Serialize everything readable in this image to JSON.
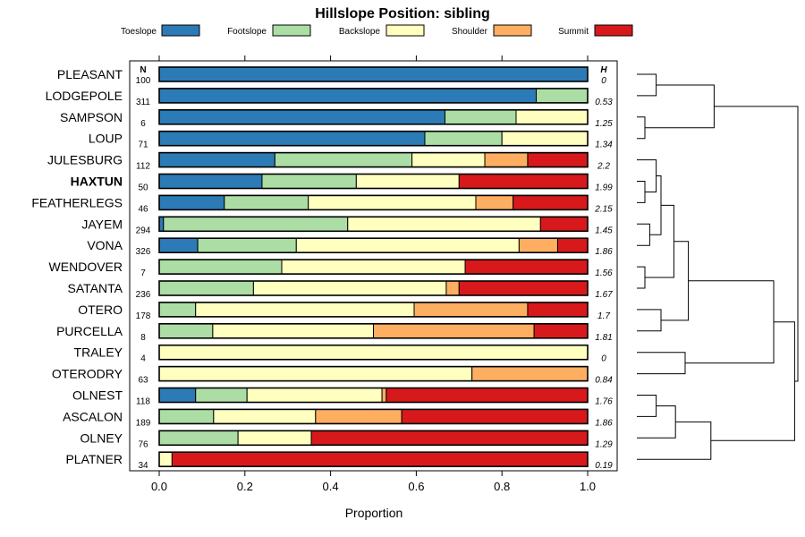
{
  "chart_data": {
    "type": "bar",
    "orientation": "horizontal",
    "stacked": true,
    "title": "Hillslope Position: sibling",
    "xlabel": "Proportion",
    "ylabel": "",
    "xlim": [
      0,
      1
    ],
    "x_ticks": [
      "0.0",
      "0.2",
      "0.4",
      "0.6",
      "0.8",
      "1.0"
    ],
    "x_tick_values": [
      0,
      0.2,
      0.4,
      0.6,
      0.8,
      1.0
    ],
    "n_header": "N",
    "h_header": "H",
    "highlighted": "HAXTUN",
    "legend_position": "top",
    "series": [
      {
        "name": "Toeslope",
        "color": "#2c7bb6"
      },
      {
        "name": "Footslope",
        "color": "#abdda4"
      },
      {
        "name": "Backslope",
        "color": "#ffffbf"
      },
      {
        "name": "Shoulder",
        "color": "#fdae61"
      },
      {
        "name": "Summit",
        "color": "#d7191c"
      }
    ],
    "rows": [
      {
        "label": "PLEASANT",
        "n": "100",
        "h": "0",
        "values": [
          1.0,
          0,
          0,
          0,
          0
        ]
      },
      {
        "label": "LODGEPOLE",
        "n": "311",
        "h": "0.53",
        "values": [
          0.88,
          0.12,
          0,
          0,
          0
        ]
      },
      {
        "label": "SAMPSON",
        "n": "6",
        "h": "1.25",
        "values": [
          0.667,
          0.166,
          0.167,
          0,
          0
        ]
      },
      {
        "label": "LOUP",
        "n": "71",
        "h": "1.34",
        "values": [
          0.62,
          0.18,
          0.2,
          0,
          0
        ]
      },
      {
        "label": "JULESBURG",
        "n": "112",
        "h": "2.2",
        "values": [
          0.27,
          0.32,
          0.17,
          0.1,
          0.14
        ]
      },
      {
        "label": "HAXTUN",
        "n": "50",
        "h": "1.99",
        "values": [
          0.24,
          0.22,
          0.24,
          0,
          0.3
        ]
      },
      {
        "label": "FEATHERLEGS",
        "n": "46",
        "h": "2.15",
        "values": [
          0.152,
          0.196,
          0.391,
          0.087,
          0.174
        ]
      },
      {
        "label": "JAYEM",
        "n": "294",
        "h": "1.45",
        "values": [
          0.01,
          0.43,
          0.45,
          0,
          0.11
        ]
      },
      {
        "label": "VONA",
        "n": "326",
        "h": "1.86",
        "values": [
          0.09,
          0.23,
          0.52,
          0.09,
          0.07
        ]
      },
      {
        "label": "WENDOVER",
        "n": "7",
        "h": "1.56",
        "values": [
          0,
          0.286,
          0.428,
          0,
          0.286
        ]
      },
      {
        "label": "SATANTA",
        "n": "236",
        "h": "1.67",
        "values": [
          0,
          0.22,
          0.45,
          0.03,
          0.3
        ]
      },
      {
        "label": "OTERO",
        "n": "178",
        "h": "1.7",
        "values": [
          0,
          0.085,
          0.51,
          0.265,
          0.14
        ]
      },
      {
        "label": "PURCELLA",
        "n": "8",
        "h": "1.81",
        "values": [
          0,
          0.125,
          0.375,
          0.375,
          0.125
        ]
      },
      {
        "label": "TRALEY",
        "n": "4",
        "h": "0",
        "values": [
          0,
          0,
          1.0,
          0,
          0
        ]
      },
      {
        "label": "OTERODRY",
        "n": "63",
        "h": "0.84",
        "values": [
          0,
          0,
          0.73,
          0.27,
          0
        ]
      },
      {
        "label": "OLNEST",
        "n": "118",
        "h": "1.76",
        "values": [
          0.085,
          0.12,
          0.315,
          0.01,
          0.47
        ]
      },
      {
        "label": "ASCALON",
        "n": "189",
        "h": "1.86",
        "values": [
          0,
          0.127,
          0.238,
          0.201,
          0.434
        ]
      },
      {
        "label": "OLNEY",
        "n": "76",
        "h": "1.29",
        "values": [
          0,
          0.184,
          0.171,
          0,
          0.645
        ]
      },
      {
        "label": "PLATNER",
        "n": "34",
        "h": "0.19",
        "values": [
          0,
          0,
          0.03,
          0,
          0.97
        ]
      }
    ],
    "dendrogram": {
      "merges": [
        [
          0,
          1,
          0.12
        ],
        [
          2,
          3,
          0.05
        ],
        [
          -1,
          -2,
          0.48
        ],
        [
          5,
          6,
          0.05
        ],
        [
          4,
          -4,
          0.12
        ],
        [
          9,
          10,
          0.05
        ],
        [
          7,
          8,
          0.08
        ],
        [
          -7,
          -5,
          0.15
        ],
        [
          -6,
          -8,
          0.23
        ],
        [
          11,
          12,
          0.15
        ],
        [
          -9,
          -10,
          0.32
        ],
        [
          13,
          14,
          0.3
        ],
        [
          -11,
          -12,
          0.85
        ],
        [
          15,
          16,
          0.12
        ],
        [
          -14,
          17,
          0.24
        ],
        [
          -15,
          18,
          0.46
        ],
        [
          -13,
          -16,
          0.98
        ],
        [
          -3,
          -17,
          1.0
        ]
      ],
      "max_height": 1.0
    }
  }
}
